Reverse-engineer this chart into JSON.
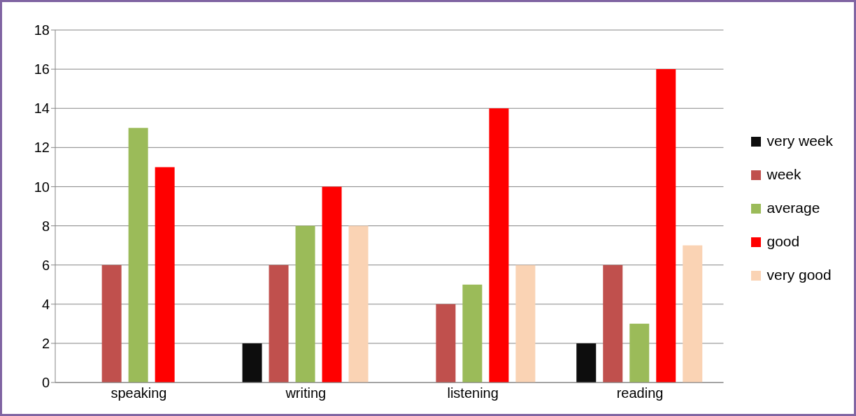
{
  "chart_data": {
    "type": "bar",
    "categories": [
      "speaking",
      "writing",
      "listening",
      "reading"
    ],
    "series": [
      {
        "name": "very week",
        "color": "#0d0d0d",
        "values": [
          0,
          2,
          0,
          2
        ]
      },
      {
        "name": "week",
        "color": "#c0504d",
        "values": [
          6,
          6,
          4,
          6
        ]
      },
      {
        "name": "average",
        "color": "#9bbb59",
        "values": [
          13,
          8,
          5,
          3
        ]
      },
      {
        "name": "good",
        "color": "#ff0000",
        "values": [
          11,
          10,
          14,
          16
        ]
      },
      {
        "name": "very good",
        "color": "#fad3b4",
        "values": [
          0,
          8,
          6,
          7
        ]
      }
    ],
    "ylim": [
      0,
      18
    ],
    "yticks": [
      0,
      2,
      4,
      6,
      8,
      10,
      12,
      14,
      16,
      18
    ],
    "grid": "y",
    "legend": "right"
  }
}
